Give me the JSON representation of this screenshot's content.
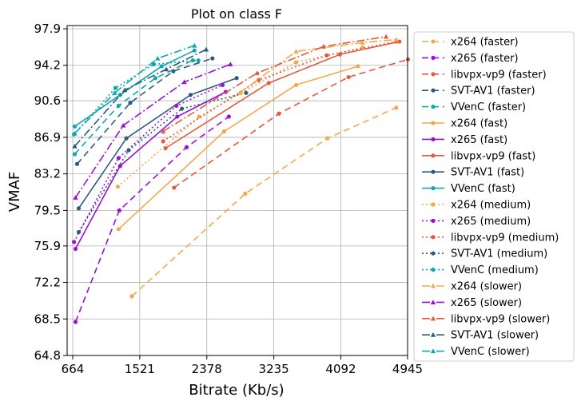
{
  "chart_data": {
    "type": "line",
    "title": "Plot on class F",
    "xlabel": "Bitrate (Kb/s)",
    "ylabel": "VMAF",
    "xlim": [
      664,
      4945
    ],
    "ylim": [
      64.8,
      97.9
    ],
    "x_ticks": [
      "664",
      "1521",
      "2378",
      "3235",
      "4092",
      "4945"
    ],
    "y_ticks": [
      "64.8",
      "68.5",
      "72.2",
      "75.9",
      "79.5",
      "83.2",
      "86.9",
      "90.6",
      "94.2",
      "97.9"
    ],
    "grid": true,
    "legend_position": "right-outside",
    "series": [
      {
        "name": "x264 (faster)",
        "color": "#F5A84B",
        "dash": "8,5",
        "marker": "circle",
        "points": [
          [
            1420,
            70.8
          ],
          [
            2870,
            81.2
          ],
          [
            3920,
            86.8
          ],
          [
            4800,
            89.9
          ]
        ]
      },
      {
        "name": "x265 (faster)",
        "color": "#9B10DB",
        "dash": "8,5",
        "marker": "circle",
        "points": [
          [
            700,
            68.2
          ],
          [
            1260,
            79.5
          ],
          [
            2120,
            85.9
          ],
          [
            2660,
            89.0
          ]
        ]
      },
      {
        "name": "libvpx-vp9 (faster)",
        "color": "#E35A3F",
        "dash": "8,5",
        "marker": "circle",
        "points": [
          [
            1960,
            81.8
          ],
          [
            3300,
            89.3
          ],
          [
            4190,
            93.0
          ],
          [
            4950,
            94.8
          ]
        ]
      },
      {
        "name": "SVT-AV1 (faster)",
        "color": "#2E5A7E",
        "dash": "8,5",
        "marker": "circle",
        "points": [
          [
            720,
            84.2
          ],
          [
            1400,
            90.4
          ],
          [
            1950,
            93.6
          ],
          [
            2450,
            94.9
          ]
        ]
      },
      {
        "name": "VVenC (faster)",
        "color": "#10A8B0",
        "dash": "8,5",
        "marker": "circle",
        "points": [
          [
            690,
            85.2
          ],
          [
            1250,
            90.1
          ],
          [
            1720,
            92.9
          ],
          [
            2200,
            94.7
          ]
        ]
      },
      {
        "name": "x264 (fast)",
        "color": "#F5A84B",
        "dash": "",
        "marker": "circle",
        "points": [
          [
            1250,
            77.6
          ],
          [
            2600,
            87.5
          ],
          [
            3520,
            92.2
          ],
          [
            4310,
            94.1
          ]
        ]
      },
      {
        "name": "x265 (fast)",
        "color": "#9B10DB",
        "dash": "",
        "marker": "circle",
        "points": [
          [
            700,
            75.6
          ],
          [
            1270,
            84.0
          ],
          [
            2000,
            89.0
          ],
          [
            2620,
            91.5
          ]
        ]
      },
      {
        "name": "libvpx-vp9 (fast)",
        "color": "#E35A3F",
        "dash": "",
        "marker": "circle",
        "points": [
          [
            1850,
            85.8
          ],
          [
            3170,
            92.4
          ],
          [
            4080,
            95.3
          ],
          [
            4840,
            96.6
          ]
        ]
      },
      {
        "name": "SVT-AV1 (fast)",
        "color": "#2E5A7E",
        "dash": "",
        "marker": "circle",
        "points": [
          [
            740,
            79.7
          ],
          [
            1350,
            86.8
          ],
          [
            2170,
            91.2
          ],
          [
            2760,
            92.9
          ]
        ]
      },
      {
        "name": "VVenC (fast)",
        "color": "#10A8B0",
        "dash": "",
        "marker": "circle",
        "points": [
          [
            690,
            88.0
          ],
          [
            1270,
            91.2
          ],
          [
            1800,
            94.1
          ],
          [
            2220,
            95.7
          ]
        ]
      },
      {
        "name": "x264 (medium)",
        "color": "#F5A84B",
        "dash": "2,3",
        "marker": "circle",
        "points": [
          [
            1240,
            81.9
          ],
          [
            2280,
            89.0
          ],
          [
            3520,
            94.5
          ],
          [
            4370,
            96.0
          ]
        ]
      },
      {
        "name": "x265 (medium)",
        "color": "#9B10DB",
        "dash": "2,3",
        "marker": "circle",
        "points": [
          [
            680,
            76.3
          ],
          [
            1250,
            84.8
          ],
          [
            1990,
            90.1
          ],
          [
            2580,
            92.2
          ]
        ]
      },
      {
        "name": "libvpx-vp9 (medium)",
        "color": "#E35A3F",
        "dash": "2,3",
        "marker": "circle",
        "points": [
          [
            1820,
            86.5
          ],
          [
            3040,
            92.7
          ],
          [
            3910,
            95.2
          ],
          [
            4800,
            96.6
          ]
        ]
      },
      {
        "name": "SVT-AV1 (medium)",
        "color": "#2E5A7E",
        "dash": "2,3",
        "marker": "circle",
        "points": [
          [
            740,
            77.3
          ],
          [
            1380,
            85.6
          ],
          [
            2060,
            89.8
          ],
          [
            2880,
            91.4
          ]
        ]
      },
      {
        "name": "VVenC (medium)",
        "color": "#10A8B0",
        "dash": "2,3",
        "marker": "circle",
        "points": [
          [
            680,
            87.2
          ],
          [
            1210,
            91.9
          ],
          [
            1700,
            94.3
          ],
          [
            2270,
            94.7
          ]
        ]
      },
      {
        "name": "x264 (slower)",
        "color": "#F5A84B",
        "dash": "10,3,2,3",
        "marker": "triangle",
        "points": [
          [
            2800,
            91.4
          ],
          [
            3520,
            95.6
          ],
          [
            4370,
            96.5
          ],
          [
            4800,
            96.8
          ]
        ]
      },
      {
        "name": "x265 (slower)",
        "color": "#9B10DB",
        "dash": "10,3,2,3",
        "marker": "triangle",
        "points": [
          [
            700,
            80.8
          ],
          [
            1310,
            88.1
          ],
          [
            2090,
            92.5
          ],
          [
            2680,
            94.3
          ]
        ]
      },
      {
        "name": "libvpx-vp9 (slower)",
        "color": "#E35A3F",
        "dash": "10,3,2,3",
        "marker": "triangle",
        "points": [
          [
            1820,
            87.5
          ],
          [
            3020,
            93.4
          ],
          [
            3870,
            96.1
          ],
          [
            4670,
            97.1
          ]
        ]
      },
      {
        "name": "SVT-AV1 (slower)",
        "color": "#2E5A7E",
        "dash": "10,3,2,3",
        "marker": "triangle",
        "points": [
          [
            690,
            86.0
          ],
          [
            1330,
            91.7
          ],
          [
            1860,
            93.8
          ],
          [
            2370,
            95.8
          ]
        ]
      },
      {
        "name": "VVenC (slower)",
        "color": "#10A8B0",
        "dash": "10,3,2,3",
        "marker": "triangle",
        "points": [
          [
            690,
            87.3
          ],
          [
            1200,
            91.4
          ],
          [
            1750,
            94.9
          ],
          [
            2220,
            96.2
          ]
        ]
      }
    ]
  }
}
